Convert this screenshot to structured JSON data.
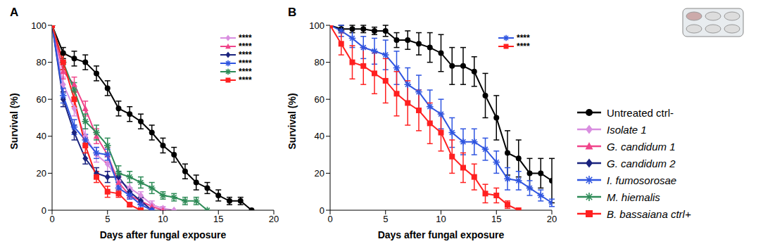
{
  "chart_data": [
    {
      "type": "line",
      "title": "A",
      "x_label": "Days after fungal exposure",
      "y_label": "Survival (%)",
      "x": [
        0,
        1,
        2,
        3,
        4,
        5,
        6,
        7,
        8,
        9,
        10,
        11,
        12,
        13,
        14,
        15,
        16,
        17,
        18,
        19,
        20
      ],
      "xlim": [
        0,
        20
      ],
      "xticks": [
        0,
        5,
        10,
        15,
        20
      ],
      "ylim": [
        0,
        100
      ],
      "yticks": [
        0,
        20,
        40,
        60,
        80,
        100
      ],
      "grid": false,
      "legend": "right",
      "series": [
        {
          "name": "Untreated ctrl-",
          "color": "#000000",
          "marker": "circle",
          "values": [
            100,
            85,
            82,
            80,
            74,
            66,
            55,
            52,
            48,
            42,
            35,
            30,
            21,
            15,
            12,
            8,
            5,
            5,
            0,
            null,
            null
          ],
          "error": [
            0,
            3,
            4,
            4,
            4,
            4,
            4,
            4,
            4,
            4,
            4,
            4,
            4,
            4,
            3,
            3,
            2,
            2,
            0,
            null,
            null
          ]
        },
        {
          "name": "Isolate 1",
          "color": "#d98ee0",
          "marker": "diamond",
          "significance": "****",
          "values": [
            100,
            68,
            55,
            40,
            30,
            25,
            16,
            12,
            8,
            3,
            1,
            0,
            null,
            null,
            null,
            null,
            null,
            null,
            null,
            null,
            null
          ],
          "error": [
            0,
            4,
            4,
            4,
            4,
            4,
            3,
            3,
            2,
            2,
            1,
            0,
            null,
            null,
            null,
            null,
            null,
            null,
            null,
            null,
            null
          ]
        },
        {
          "name": "G. candidum 1",
          "color": "#f0448a",
          "marker": "triangle",
          "significance": "****",
          "values": [
            100,
            75,
            68,
            55,
            40,
            30,
            15,
            8,
            5,
            2,
            0,
            null,
            null,
            null,
            null,
            null,
            null,
            null,
            null,
            null,
            null
          ],
          "error": [
            0,
            4,
            4,
            4,
            4,
            4,
            3,
            2,
            2,
            1,
            0,
            null,
            null,
            null,
            null,
            null,
            null,
            null,
            null,
            null,
            null
          ]
        },
        {
          "name": "G. candidum 2",
          "color": "#1a237e",
          "marker": "diamond",
          "significance": "****",
          "values": [
            100,
            60,
            42,
            28,
            20,
            18,
            18,
            10,
            5,
            0,
            null,
            null,
            null,
            null,
            null,
            null,
            null,
            null,
            null,
            null,
            null
          ],
          "error": [
            0,
            4,
            4,
            3,
            3,
            3,
            3,
            2,
            2,
            0,
            null,
            null,
            null,
            null,
            null,
            null,
            null,
            null,
            null,
            null,
            null
          ]
        },
        {
          "name": "I. fumosorosae",
          "color": "#2f55e0",
          "marker": "star",
          "significance": "****",
          "values": [
            100,
            62,
            45,
            38,
            31,
            30,
            12,
            8,
            3,
            0,
            null,
            null,
            null,
            null,
            null,
            null,
            null,
            null,
            null,
            null,
            null
          ],
          "error": [
            0,
            4,
            4,
            3,
            3,
            3,
            3,
            2,
            2,
            0,
            null,
            null,
            null,
            null,
            null,
            null,
            null,
            null,
            null,
            null,
            null
          ]
        },
        {
          "name": "M. hiemalis",
          "color": "#2e8b57",
          "marker": "star",
          "significance": "****",
          "values": [
            100,
            80,
            65,
            48,
            42,
            35,
            20,
            18,
            15,
            12,
            8,
            7,
            5,
            5,
            0,
            null,
            null,
            null,
            null,
            null,
            null
          ],
          "error": [
            0,
            4,
            4,
            4,
            4,
            4,
            4,
            3,
            3,
            3,
            2,
            2,
            2,
            2,
            0,
            null,
            null,
            null,
            null,
            null,
            null
          ]
        },
        {
          "name": "B. bassaiana ctrl+",
          "color": "#ff2020",
          "marker": "square",
          "significance": "****",
          "values": [
            100,
            80,
            60,
            35,
            18,
            10,
            9,
            3,
            0,
            null,
            null,
            null,
            null,
            null,
            null,
            null,
            null,
            null,
            null,
            null,
            null
          ],
          "error": [
            0,
            4,
            4,
            4,
            3,
            3,
            2,
            1,
            0,
            null,
            null,
            null,
            null,
            null,
            null,
            null,
            null,
            null,
            null,
            null,
            null
          ]
        }
      ]
    },
    {
      "type": "line",
      "title": "B",
      "x_label": "Days after fungal exposure",
      "y_label": "Survival (%)",
      "x": [
        0,
        1,
        2,
        3,
        4,
        5,
        6,
        7,
        8,
        9,
        10,
        11,
        12,
        13,
        14,
        15,
        16,
        17,
        18,
        19,
        20
      ],
      "xlim": [
        0,
        20
      ],
      "xticks": [
        0,
        5,
        10,
        15,
        20
      ],
      "ylim": [
        0,
        100
      ],
      "yticks": [
        0,
        20,
        40,
        60,
        80,
        100
      ],
      "grid": false,
      "series": [
        {
          "name": "Untreated ctrl-",
          "color": "#000000",
          "marker": "circle",
          "values": [
            100,
            98,
            98,
            98,
            97,
            97,
            92,
            92,
            90,
            88,
            85,
            78,
            78,
            75,
            62,
            50,
            31,
            28,
            20,
            20,
            16
          ],
          "error": [
            0,
            2,
            2,
            2,
            2,
            3,
            4,
            5,
            6,
            8,
            10,
            10,
            10,
            8,
            12,
            12,
            12,
            10,
            8,
            8,
            12
          ]
        },
        {
          "name": "I. fumosorosae",
          "color": "#2f55e0",
          "marker": "star",
          "significance": "****",
          "values": [
            100,
            97,
            93,
            88,
            86,
            84,
            77,
            68,
            64,
            56,
            52,
            42,
            37,
            37,
            33,
            26,
            17,
            16,
            12,
            8,
            4
          ],
          "error": [
            0,
            3,
            5,
            6,
            7,
            8,
            9,
            9,
            9,
            9,
            8,
            8,
            7,
            7,
            6,
            6,
            6,
            5,
            4,
            3,
            2
          ]
        },
        {
          "name": "B. bassaiana ctrl+",
          "color": "#ff2020",
          "marker": "square",
          "significance": "****",
          "values": [
            100,
            90,
            80,
            78,
            74,
            70,
            63,
            58,
            54,
            47,
            42,
            29,
            23,
            18,
            9,
            8,
            3,
            0,
            null,
            null,
            null
          ],
          "error": [
            0,
            6,
            9,
            10,
            11,
            12,
            12,
            12,
            11,
            11,
            10,
            9,
            8,
            7,
            5,
            4,
            2,
            0,
            null,
            null,
            null
          ]
        }
      ]
    }
  ]
}
